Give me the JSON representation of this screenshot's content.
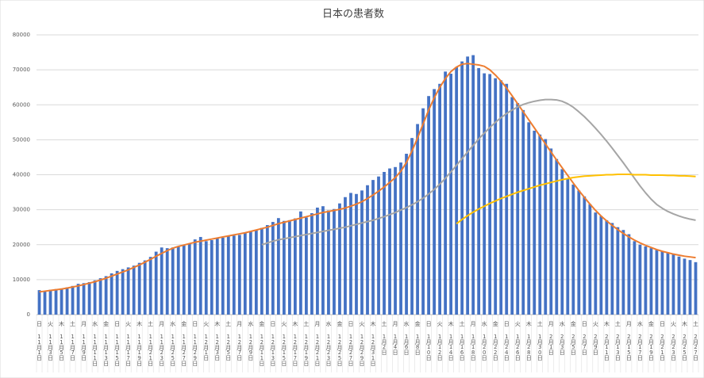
{
  "chart_data": {
    "type": "bar",
    "title": "日本の患者数",
    "categories": [
      "11月1日",
      null,
      "11月3日",
      null,
      "11月5日",
      null,
      "11月7日",
      null,
      "11月9日",
      null,
      "11月11日",
      null,
      "11月13日",
      null,
      "11月15日",
      null,
      "11月17日",
      null,
      "11月19日",
      null,
      "11月21日",
      null,
      "11月23日",
      null,
      "11月25日",
      null,
      "11月27日",
      null,
      "11月29日",
      null,
      "12月1日",
      null,
      "12月3日",
      null,
      "12月5日",
      null,
      "12月7日",
      null,
      "12月9日",
      null,
      "12月11日",
      null,
      "12月13日",
      null,
      "12月15日",
      null,
      "12月17日",
      null,
      "12月19日",
      null,
      "12月21日",
      null,
      "12月23日",
      null,
      "12月25日",
      null,
      "12月27日",
      null,
      "12月29日",
      null,
      "12月31日",
      null,
      "1月2日",
      null,
      "1月4日",
      null,
      "1月6日",
      null,
      "1月8日",
      null,
      "1月10日",
      null,
      "1月12日",
      null,
      "1月14日",
      null,
      "1月16日",
      null,
      "1月18日",
      null,
      "1月20日",
      null,
      "1月22日",
      null,
      "1月24日",
      null,
      "1月26日",
      null,
      "1月28日",
      null,
      "1月30日",
      null,
      "2月1日",
      null,
      "2月3日",
      null,
      "2月5日",
      null,
      "2月7日",
      null,
      "2月9日",
      null,
      "2月11日",
      null,
      "2月13日",
      null,
      "2月15日",
      null,
      "2月17日",
      null,
      "2月19日",
      null,
      "2月21日",
      null,
      "2月23日",
      null,
      "2月25日",
      null,
      "2月27日"
    ],
    "weekdays": [
      "日",
      null,
      "火",
      null,
      "木",
      null,
      "土",
      null,
      "月",
      null,
      "水",
      null,
      "金",
      null,
      "日",
      null,
      "火",
      null,
      "木",
      null,
      "土",
      null,
      "月",
      null,
      "水",
      null,
      "金",
      null,
      "日",
      null,
      "火",
      null,
      "木",
      null,
      "土",
      null,
      "月",
      null,
      "水",
      null,
      "金",
      null,
      "日",
      null,
      "火",
      null,
      "木",
      null,
      "土",
      null,
      "月",
      null,
      "水",
      null,
      "金",
      null,
      "日",
      null,
      "火",
      null,
      "木",
      null,
      "土",
      null,
      "月",
      null,
      "水",
      null,
      "金",
      null,
      "日",
      null,
      "火",
      null,
      "木",
      null,
      "土",
      null,
      "月",
      null,
      "水",
      null,
      "金",
      null,
      "日",
      null,
      "火",
      null,
      "木",
      null,
      "土",
      null,
      "月",
      null,
      "水",
      null,
      "金",
      null,
      "日",
      null,
      "火",
      null,
      "木",
      null,
      "土",
      null,
      "月",
      null,
      "水",
      null,
      "金",
      null,
      "日",
      null,
      "火",
      null,
      "木",
      null,
      "土"
    ],
    "series": [
      {
        "color": "#4472c4",
        "values": [
          7000,
          6800,
          7100,
          7300,
          7500,
          7800,
          8200,
          8800,
          9000,
          9300,
          9800,
          10400,
          11000,
          11800,
          12500,
          13000,
          13500,
          14000,
          14800,
          15500,
          16500,
          18000,
          19200,
          19000,
          19200,
          19400,
          19800,
          20200,
          21500,
          22200,
          21000,
          21300,
          21800,
          22000,
          22400,
          22600,
          22800,
          23500,
          23800,
          24200,
          24800,
          25600,
          26500,
          27600,
          26800,
          27000,
          27500,
          29500,
          27800,
          29000,
          30600,
          31000,
          29800,
          30200,
          31800,
          33600,
          34800,
          34500,
          35500,
          37000,
          38500,
          39500,
          40800,
          41800,
          42200,
          43500,
          46000,
          50500,
          54500,
          59000,
          62500,
          64500,
          66000,
          69500,
          68900,
          70800,
          72400,
          73800,
          74200,
          70500,
          69000,
          68800,
          67600,
          67000,
          66000,
          62200,
          60500,
          58500,
          55000,
          52600,
          51500,
          50200,
          47500,
          44500,
          41600,
          38800,
          37200,
          35500,
          33800,
          31600,
          29200,
          28200,
          27000,
          26200,
          25000,
          24200,
          23000,
          21000,
          20000,
          19500,
          19000,
          18500,
          18200,
          17800,
          17200,
          16600,
          16000,
          15600,
          15000
        ]
      },
      {
        "type": "line",
        "color": "#ed7d31",
        "values": [
          6500,
          6700,
          6900,
          7100,
          7300,
          7600,
          7900,
          8200,
          8600,
          9000,
          9400,
          9900,
          10400,
          11000,
          11600,
          12200,
          12800,
          13500,
          14200,
          15000,
          15800,
          16700,
          17500,
          18300,
          19000,
          19500,
          19900,
          20300,
          20700,
          21000,
          21300,
          21600,
          21900,
          22200,
          22500,
          22800,
          23100,
          23400,
          23800,
          24200,
          24600,
          25000,
          25500,
          26000,
          26400,
          26800,
          27200,
          27600,
          28000,
          28400,
          28800,
          29200,
          29500,
          29800,
          30100,
          30500,
          31000,
          31600,
          32300,
          33200,
          34200,
          35300,
          36500,
          37800,
          39200,
          41000,
          43500,
          46800,
          50500,
          54500,
          58500,
          62000,
          65000,
          67500,
          69500,
          70800,
          71600,
          71800,
          71600,
          71400,
          71000,
          70000,
          68500,
          66800,
          64800,
          62600,
          60300,
          58000,
          55700,
          53400,
          51100,
          48800,
          46500,
          44200,
          42000,
          39800,
          37600,
          35500,
          33500,
          31600,
          29800,
          28200,
          26800,
          25500,
          24300,
          23200,
          22200,
          21300,
          20500,
          19800,
          19200,
          18600,
          18100,
          17700,
          17300,
          17000,
          16700,
          16500,
          16300
        ]
      },
      {
        "type": "line",
        "color": "#a5a5a5",
        "values": [
          null,
          null,
          null,
          null,
          null,
          null,
          null,
          null,
          null,
          null,
          null,
          null,
          null,
          null,
          null,
          null,
          null,
          null,
          null,
          null,
          null,
          null,
          null,
          null,
          null,
          null,
          null,
          null,
          null,
          null,
          null,
          null,
          null,
          null,
          null,
          null,
          null,
          null,
          null,
          null,
          20000,
          20500,
          21000,
          21400,
          21700,
          22000,
          22300,
          22600,
          22900,
          23200,
          23500,
          23800,
          24100,
          24400,
          24700,
          25000,
          25400,
          25800,
          26200,
          26600,
          27000,
          27500,
          28000,
          28600,
          29200,
          29900,
          30600,
          31400,
          32300,
          33300,
          34500,
          35800,
          37300,
          39000,
          40800,
          42700,
          44600,
          46500,
          48400,
          50200,
          51900,
          53500,
          55000,
          56300,
          57500,
          58500,
          59400,
          60100,
          60600,
          61000,
          61300,
          61500,
          61500,
          61400,
          61000,
          60300,
          59300,
          58000,
          56600,
          55000,
          53300,
          51500,
          49600,
          47600,
          45500,
          43400,
          41200,
          39000,
          36800,
          34800,
          33000,
          31500,
          30400,
          29500,
          28800,
          28200,
          27700,
          27300,
          27000
        ]
      },
      {
        "type": "line",
        "color": "#ffc000",
        "values": [
          null,
          null,
          null,
          null,
          null,
          null,
          null,
          null,
          null,
          null,
          null,
          null,
          null,
          null,
          null,
          null,
          null,
          null,
          null,
          null,
          null,
          null,
          null,
          null,
          null,
          null,
          null,
          null,
          null,
          null,
          null,
          null,
          null,
          null,
          null,
          null,
          null,
          null,
          null,
          null,
          null,
          null,
          null,
          null,
          null,
          null,
          null,
          null,
          null,
          null,
          null,
          null,
          null,
          null,
          null,
          null,
          null,
          null,
          null,
          null,
          null,
          null,
          null,
          null,
          null,
          null,
          null,
          null,
          null,
          null,
          null,
          null,
          null,
          null,
          null,
          26000,
          27200,
          28300,
          29300,
          30200,
          31000,
          31800,
          32500,
          33200,
          33800,
          34400,
          35000,
          35500,
          36000,
          36500,
          37000,
          37400,
          37800,
          38200,
          38600,
          38900,
          39200,
          39400,
          39600,
          39700,
          39800,
          39900,
          40000,
          40000,
          40100,
          40100,
          40100,
          40000,
          40000,
          40000,
          39900,
          39900,
          39900,
          39800,
          39800,
          39700,
          39700,
          39600,
          39500
        ]
      }
    ],
    "ylim": [
      0,
      80000
    ],
    "yticks": [
      0,
      10000,
      20000,
      30000,
      40000,
      50000,
      60000,
      70000,
      80000
    ],
    "grid": true
  }
}
